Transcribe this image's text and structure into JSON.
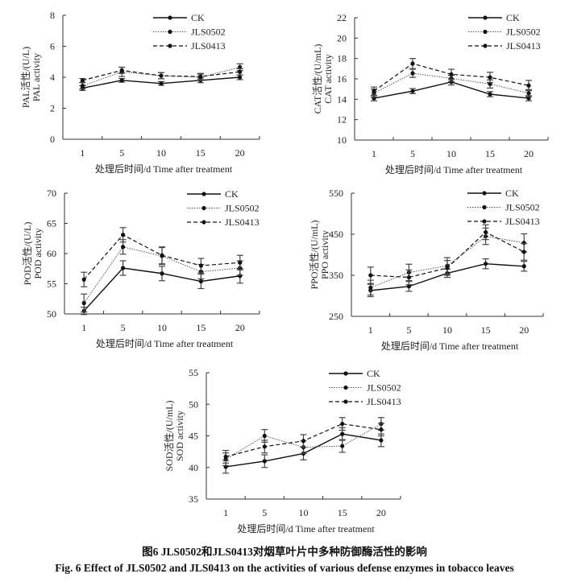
{
  "figure": {
    "caption_cn": "图6   JLS0502和JLS0413对烟草叶片中多种防御酶活性的影响",
    "caption_en": "Fig. 6   Effect of JLS0502 and JLS0413 on the activities of various defense enzymes in tobacco leaves"
  },
  "legend": [
    "CK",
    "JLS0502",
    "JLS0413"
  ],
  "chart_data": [
    {
      "id": "pal",
      "type": "line",
      "title": "",
      "xlabel": "处理后时间/d Time after treatment",
      "ylabel_cn": "PAL活性/(U/L)",
      "ylabel_en": "PAL activity",
      "categories": [
        "1",
        "5",
        "10",
        "15",
        "20"
      ],
      "ylim": [
        0,
        8
      ],
      "yticks": [
        0,
        2,
        4,
        6,
        8
      ],
      "legend_position": "top-right",
      "grid": false,
      "series": [
        {
          "name": "CK",
          "values": [
            3.3,
            3.8,
            3.6,
            3.8,
            4.0
          ],
          "errors": [
            0.15,
            0.12,
            0.12,
            0.15,
            0.15
          ]
        },
        {
          "name": "JLS0502",
          "values": [
            3.45,
            4.35,
            4.1,
            4.0,
            4.65
          ],
          "errors": [
            0.2,
            0.3,
            0.2,
            0.2,
            0.22
          ]
        },
        {
          "name": "JLS0413",
          "values": [
            3.8,
            4.45,
            4.1,
            4.05,
            4.35
          ],
          "errors": [
            0.12,
            0.2,
            0.2,
            0.2,
            0.2
          ]
        }
      ]
    },
    {
      "id": "cat",
      "type": "line",
      "title": "",
      "xlabel": "处理后时间/d Time after treatment",
      "ylabel_cn": "CAT活性/(U/mL)",
      "ylabel_en": "CAT activity",
      "categories": [
        "1",
        "5",
        "10",
        "15",
        "20"
      ],
      "ylim": [
        10,
        22
      ],
      "yticks": [
        10,
        12,
        14,
        16,
        18,
        20,
        22
      ],
      "legend_position": "top-right",
      "grid": false,
      "series": [
        {
          "name": "CK",
          "values": [
            14.1,
            14.8,
            15.7,
            14.5,
            14.1
          ],
          "errors": [
            0.25,
            0.25,
            0.3,
            0.25,
            0.25
          ]
        },
        {
          "name": "JLS0502",
          "values": [
            14.6,
            16.55,
            16.05,
            15.5,
            14.6
          ],
          "errors": [
            0.4,
            0.4,
            0.3,
            0.4,
            0.35
          ]
        },
        {
          "name": "JLS0413",
          "values": [
            14.8,
            17.5,
            16.45,
            16.15,
            15.35
          ],
          "errors": [
            0.4,
            0.5,
            0.5,
            0.5,
            0.5
          ]
        }
      ]
    },
    {
      "id": "pod",
      "type": "line",
      "title": "",
      "xlabel": "处理后时间/d Time after treatment",
      "ylabel_cn": "POD活性/(U/L)",
      "ylabel_en": "POD activity",
      "categories": [
        "1",
        "5",
        "10",
        "15",
        "20"
      ],
      "ylim": [
        50,
        70
      ],
      "yticks": [
        50,
        55,
        60,
        65,
        70
      ],
      "legend_position": "top-right",
      "grid": false,
      "series": [
        {
          "name": "CK",
          "values": [
            50.5,
            57.6,
            56.7,
            55.4,
            56.3
          ],
          "errors": [
            0.6,
            1.2,
            1.2,
            1.2,
            1.2
          ]
        },
        {
          "name": "JLS0502",
          "values": [
            51.8,
            61.1,
            59.6,
            57.0,
            57.6
          ],
          "errors": [
            1.5,
            1.2,
            1.4,
            1.2,
            1.2
          ]
        },
        {
          "name": "JLS0413",
          "values": [
            55.7,
            63.1,
            59.7,
            58.0,
            58.5
          ],
          "errors": [
            1.2,
            1.2,
            1.4,
            1.2,
            1.2
          ]
        }
      ]
    },
    {
      "id": "ppo",
      "type": "line",
      "title": "",
      "xlabel": "处理后时间/d Time after treatment",
      "ylabel_cn": "PPO活性/(U/mL)",
      "ylabel_en": "PPO activity",
      "categories": [
        "1",
        "5",
        "10",
        "15",
        "20"
      ],
      "ylim": [
        250,
        550
      ],
      "yticks": [
        250,
        350,
        450,
        550
      ],
      "legend_position": "top-right",
      "grid": false,
      "series": [
        {
          "name": "CK",
          "values": [
            313,
            323,
            355,
            378,
            372
          ],
          "errors": [
            15,
            12,
            10,
            12,
            12
          ]
        },
        {
          "name": "JLS0502",
          "values": [
            320,
            357,
            373,
            445,
            429
          ],
          "errors": [
            18,
            20,
            20,
            20,
            22
          ]
        },
        {
          "name": "JLS0413",
          "values": [
            350,
            345,
            368,
            455,
            407
          ],
          "errors": [
            20,
            18,
            18,
            18,
            20
          ]
        }
      ]
    },
    {
      "id": "sod",
      "type": "line",
      "title": "",
      "xlabel": "处理后时间/d Time after treatment",
      "ylabel_cn": "SOD活性/(U/mL)",
      "ylabel_en": "SOD activity",
      "categories": [
        "1",
        "5",
        "10",
        "15",
        "20"
      ],
      "ylim": [
        35,
        55
      ],
      "yticks": [
        35,
        40,
        45,
        50,
        55
      ],
      "legend_position": "top-right",
      "grid": false,
      "series": [
        {
          "name": "CK",
          "values": [
            40.1,
            41.0,
            42.2,
            45.3,
            44.3
          ],
          "errors": [
            1.0,
            1.0,
            1.0,
            1.0,
            1.0
          ]
        },
        {
          "name": "JLS0502",
          "values": [
            41.3,
            45.0,
            43.2,
            43.4,
            46.9
          ],
          "errors": [
            1.0,
            1.0,
            1.0,
            1.0,
            1.0
          ]
        },
        {
          "name": "JLS0413",
          "values": [
            41.7,
            43.3,
            44.2,
            46.9,
            46.0
          ],
          "errors": [
            1.0,
            1.0,
            1.0,
            1.0,
            1.0
          ]
        }
      ]
    }
  ]
}
